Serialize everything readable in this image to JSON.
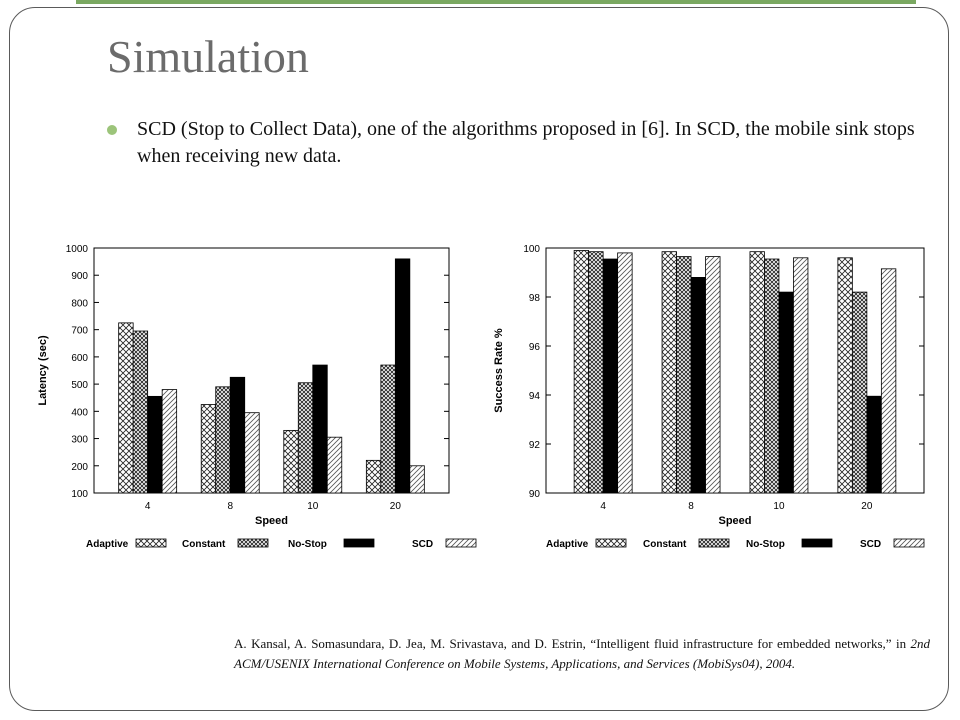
{
  "slide": {
    "title": "Simulation",
    "bullet": "SCD (Stop to Collect Data), one of the algorithms proposed in [6]. In SCD, the mobile sink stops when receiving new data."
  },
  "reference": {
    "part1": "A. Kansal, A. Somasundara, D. Jea, M. Srivastava, and D. Estrin, “Intelligent fluid infrastructure for embedded networks,” in ",
    "venue": "2nd ACM/USENIX International Conference on Mobile Systems, Applications, and Services (MobiSys04), 2004."
  },
  "chart_data": [
    {
      "type": "bar",
      "categories": [
        "4",
        "8",
        "10",
        "20"
      ],
      "xlabel": "Speed",
      "ylabel": "Latency (sec)",
      "ylim": [
        100,
        1000
      ],
      "yticks": [
        100,
        200,
        300,
        400,
        500,
        600,
        700,
        800,
        900,
        1000
      ],
      "series": [
        {
          "name": "Adaptive",
          "values": [
            725,
            425,
            330,
            220
          ],
          "pattern": "crosshatch"
        },
        {
          "name": "Constant",
          "values": [
            695,
            490,
            505,
            570
          ],
          "pattern": "dense-crosshatch"
        },
        {
          "name": "No-Stop",
          "values": [
            455,
            525,
            570,
            960
          ],
          "pattern": "solid"
        },
        {
          "name": "SCD",
          "values": [
            480,
            395,
            305,
            200
          ],
          "pattern": "diagonal"
        }
      ],
      "legend": "bottom"
    },
    {
      "type": "bar",
      "categories": [
        "4",
        "8",
        "10",
        "20"
      ],
      "xlabel": "Speed",
      "ylabel": "Success Rate %",
      "ylim": [
        90,
        100
      ],
      "yticks": [
        90,
        92,
        94,
        96,
        98,
        100
      ],
      "series": [
        {
          "name": "Adaptive",
          "values": [
            99.9,
            99.85,
            99.85,
            99.6
          ],
          "pattern": "crosshatch"
        },
        {
          "name": "Constant",
          "values": [
            99.85,
            99.65,
            99.55,
            98.2
          ],
          "pattern": "dense-crosshatch"
        },
        {
          "name": "No-Stop",
          "values": [
            99.55,
            98.8,
            98.2,
            93.95
          ],
          "pattern": "solid"
        },
        {
          "name": "SCD",
          "values": [
            99.8,
            99.65,
            99.6,
            99.15
          ],
          "pattern": "diagonal"
        }
      ],
      "legend": "bottom"
    }
  ]
}
